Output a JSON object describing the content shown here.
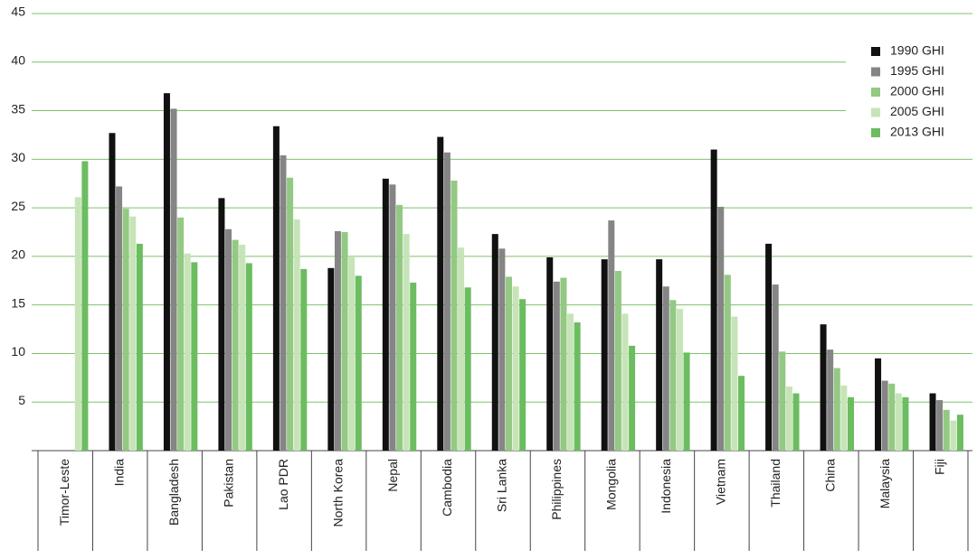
{
  "chart_data": {
    "type": "bar",
    "categories": [
      "Timor-Leste",
      "India",
      "Bangladesh",
      "Pakistan",
      "Lao PDR",
      "North Korea",
      "Nepal",
      "Cambodia",
      "Sri Lanka",
      "Philippines",
      "Mongolia",
      "Indonesia",
      "Vietnam",
      "Thailand",
      "China",
      "Malaysia",
      "Fiji"
    ],
    "series": [
      {
        "name": "1990 GHI",
        "color": "#111111",
        "values": [
          null,
          32.7,
          36.8,
          26.0,
          33.4,
          18.8,
          28.0,
          32.3,
          22.3,
          19.9,
          19.7,
          19.7,
          31.0,
          21.3,
          13.0,
          9.5,
          5.9
        ]
      },
      {
        "name": "1995 GHI",
        "color": "#858585",
        "values": [
          null,
          27.2,
          35.2,
          22.8,
          30.4,
          22.6,
          27.4,
          30.7,
          20.8,
          17.4,
          23.7,
          16.9,
          25.1,
          17.1,
          10.4,
          7.2,
          5.2
        ]
      },
      {
        "name": "2000 GHI",
        "color": "#93c983",
        "values": [
          null,
          24.9,
          24.0,
          21.7,
          28.1,
          22.5,
          25.3,
          27.8,
          17.9,
          17.8,
          18.5,
          15.5,
          18.1,
          10.2,
          8.5,
          6.9,
          4.2
        ]
      },
      {
        "name": "2005 GHI",
        "color": "#c7e4b8",
        "values": [
          26.1,
          24.1,
          20.3,
          21.2,
          23.8,
          19.9,
          22.3,
          20.9,
          16.9,
          14.1,
          14.1,
          14.6,
          13.8,
          6.6,
          6.7,
          5.9,
          3.1
        ]
      },
      {
        "name": "2013 GHI",
        "color": "#6bbd60",
        "values": [
          29.8,
          21.3,
          19.4,
          19.3,
          18.7,
          18.0,
          17.3,
          16.8,
          15.6,
          13.2,
          10.8,
          10.1,
          7.7,
          5.9,
          5.5,
          5.5,
          3.7
        ]
      }
    ],
    "ylim": [
      0,
      45
    ],
    "yticks": [
      5,
      10,
      15,
      20,
      25,
      30,
      35,
      40,
      45
    ],
    "grid": true,
    "legend": "top-right"
  }
}
